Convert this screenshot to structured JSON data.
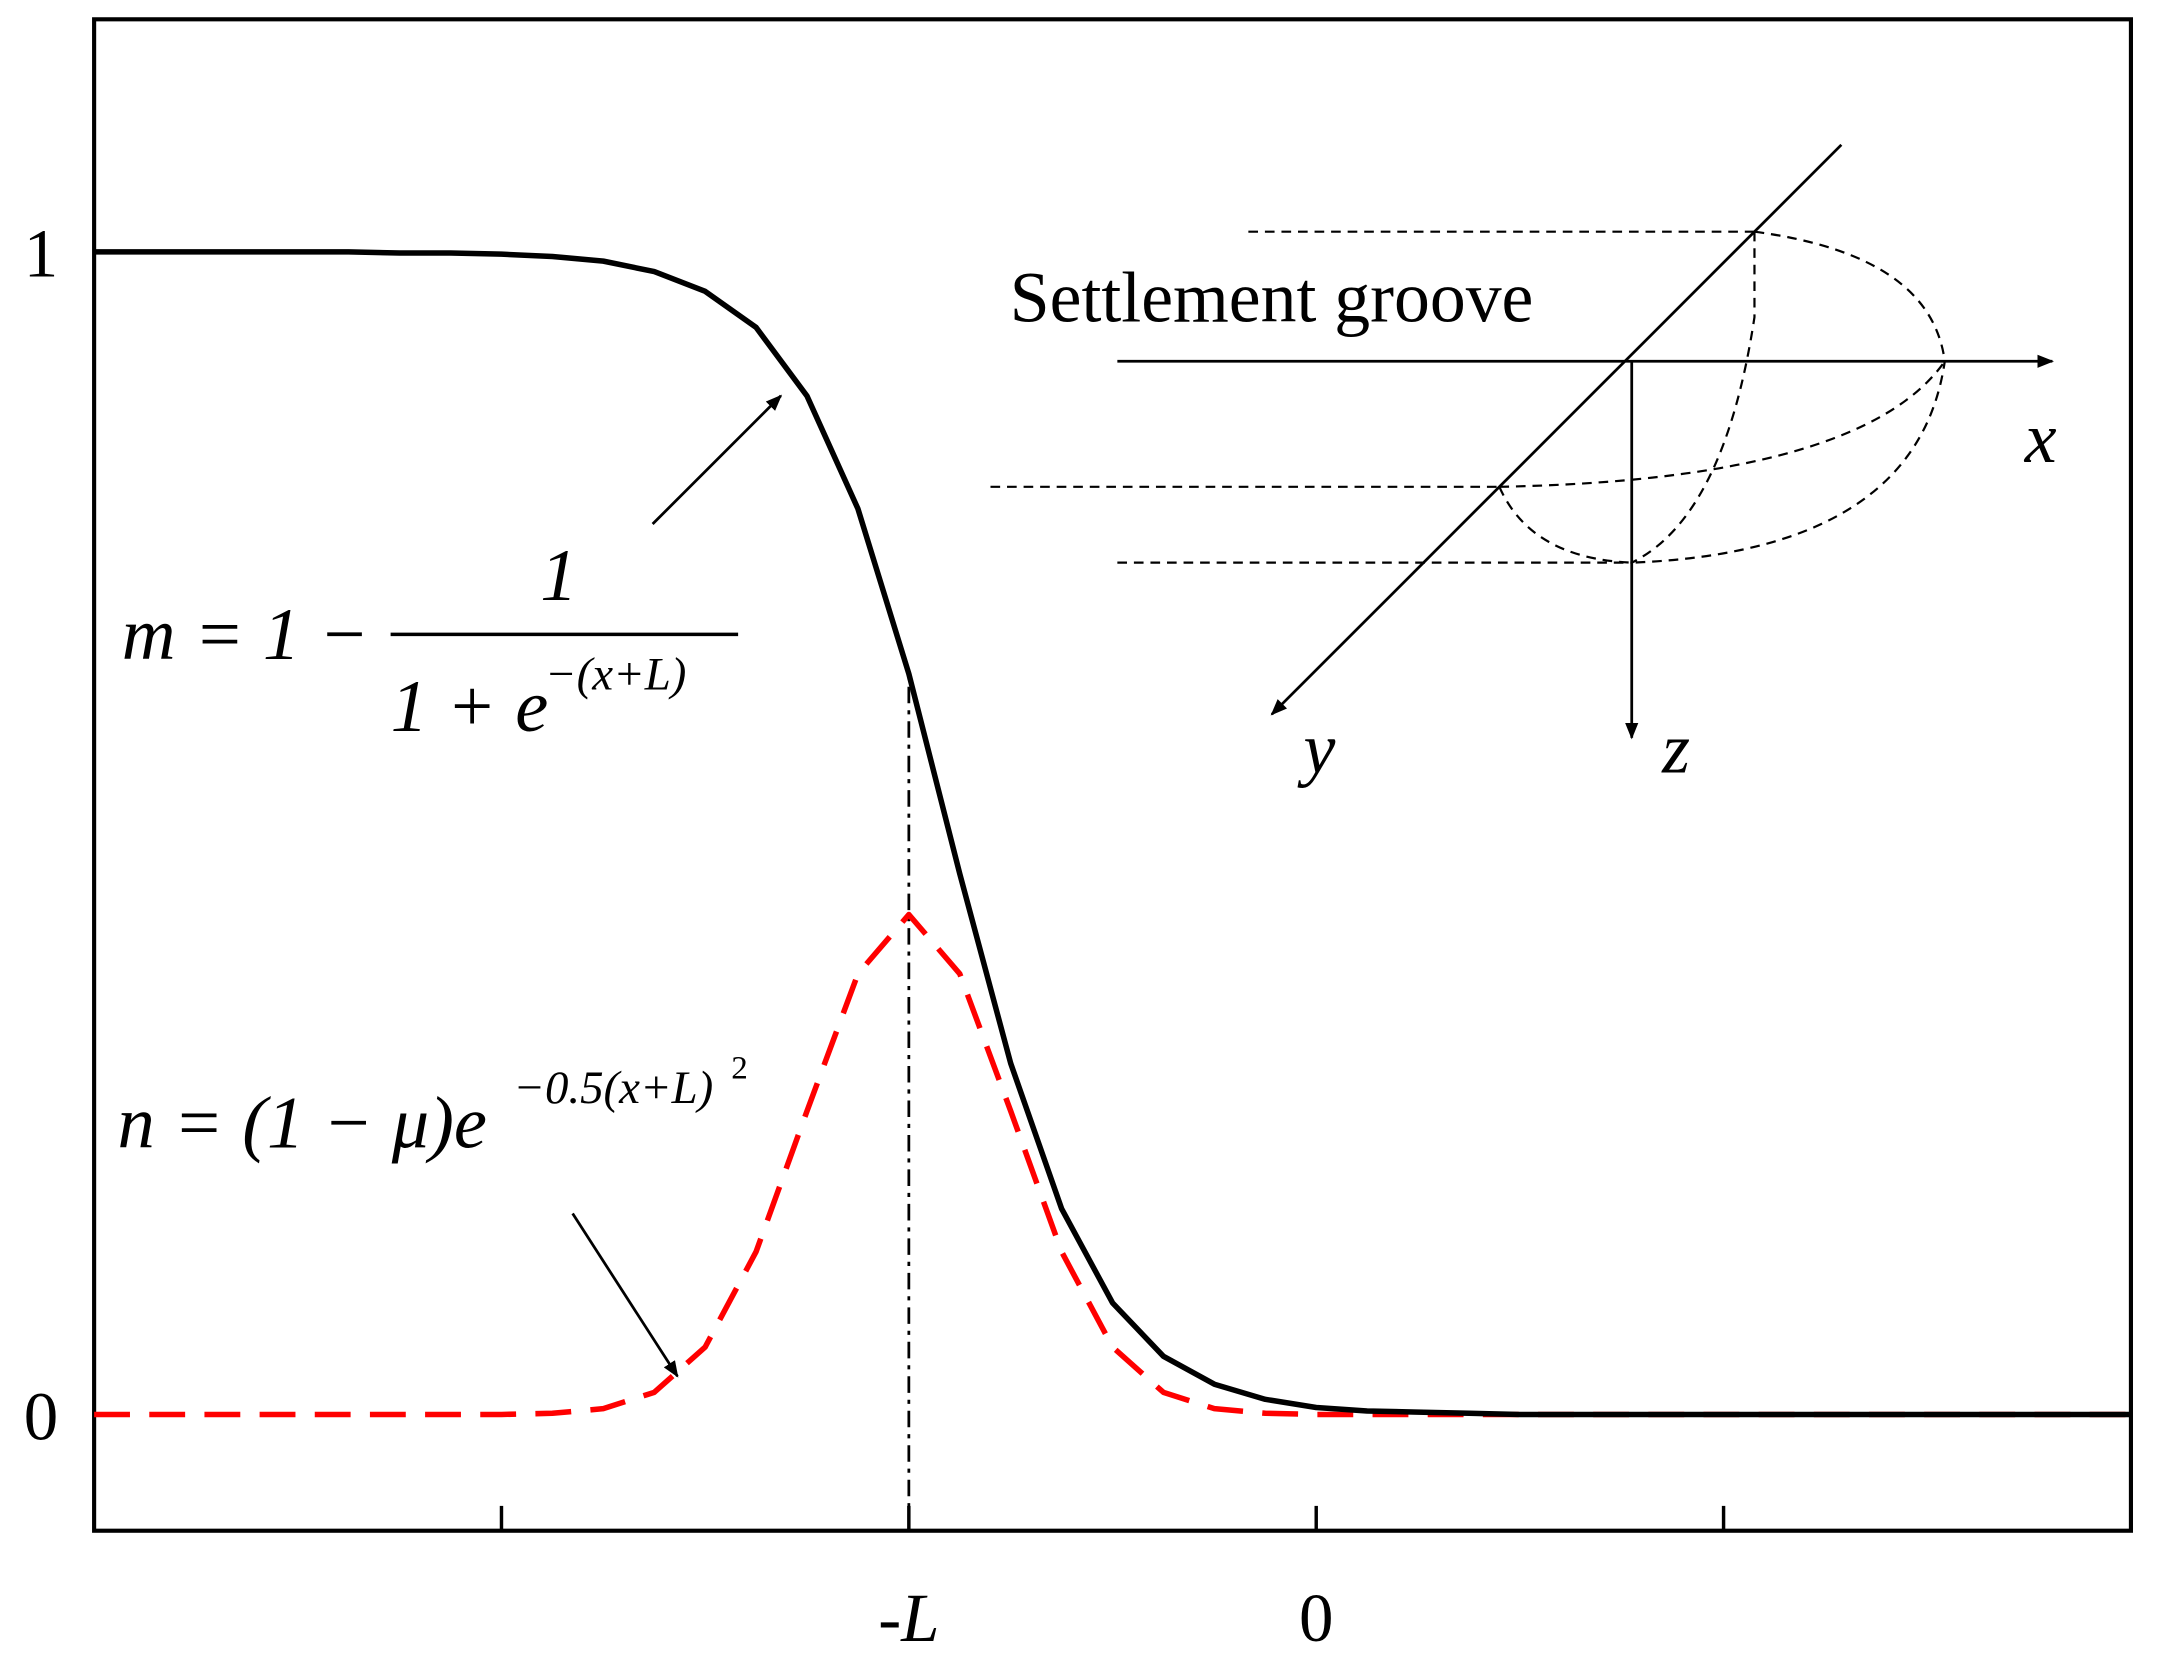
{
  "chart_data": {
    "type": "line",
    "x": [
      -6,
      -5.75,
      -5.5,
      -5.25,
      -5,
      -4.75,
      -4.5,
      -4.25,
      -4,
      -3.75,
      -3.5,
      -3.25,
      -3,
      -2.75,
      -2.5,
      -2.25,
      -2,
      -1.75,
      -1.5,
      -1.25,
      -1,
      -0.75,
      -0.5,
      -0.25,
      0,
      0.25,
      0.5,
      0.75,
      1,
      1.25,
      1.5,
      1.75,
      2,
      2.25,
      2.5,
      2.75,
      3,
      3.25,
      3.5,
      3.75,
      4
    ],
    "series": [
      {
        "name": "m",
        "color": "#000000",
        "dashed": false,
        "values": [
          1.0,
          1.0,
          1.0,
          1.0,
          1.0,
          1.0,
          0.999,
          0.999,
          0.998,
          0.996,
          0.992,
          0.983,
          0.966,
          0.935,
          0.876,
          0.779,
          0.637,
          0.465,
          0.302,
          0.177,
          0.096,
          0.05,
          0.026,
          0.013,
          0.006,
          0.003,
          0.002,
          0.001,
          0,
          0,
          0,
          0,
          0,
          0,
          0,
          0,
          0,
          0,
          0,
          0,
          0
        ]
      },
      {
        "name": "n",
        "color": "#ff0000",
        "dashed": true,
        "values": [
          0,
          0,
          0,
          0,
          0,
          0,
          0,
          0,
          0,
          0.001,
          0.005,
          0.019,
          0.058,
          0.14,
          0.261,
          0.379,
          0.43,
          0.379,
          0.261,
          0.14,
          0.058,
          0.019,
          0.005,
          0.001,
          0,
          0,
          0,
          0,
          0,
          0,
          0,
          0,
          0,
          0,
          0,
          0,
          0,
          0,
          0,
          0,
          0
        ]
      }
    ],
    "xlim": [
      -6,
      4
    ],
    "ylim": [
      -0.1,
      1.2
    ],
    "xticks": [
      {
        "value": -4,
        "label": null
      },
      {
        "value": -2,
        "label": "-L"
      },
      0,
      {
        "value": 2,
        "label": null
      }
    ],
    "yticks": [
      0,
      1
    ],
    "grid": false,
    "annotations": {
      "m_formula": {
        "lhs": "m = 1 −",
        "numerator": "1",
        "denominator": "1 + e",
        "exponent": "−(x+L)"
      },
      "n_formula": {
        "main": "n = (1 − μ)e",
        "exponent": "−0.5(x+L)",
        "power": "2"
      },
      "inset": {
        "title": "Settlement groove",
        "x_axis": "x",
        "y_axis": "y",
        "z_axis": "z"
      }
    }
  }
}
